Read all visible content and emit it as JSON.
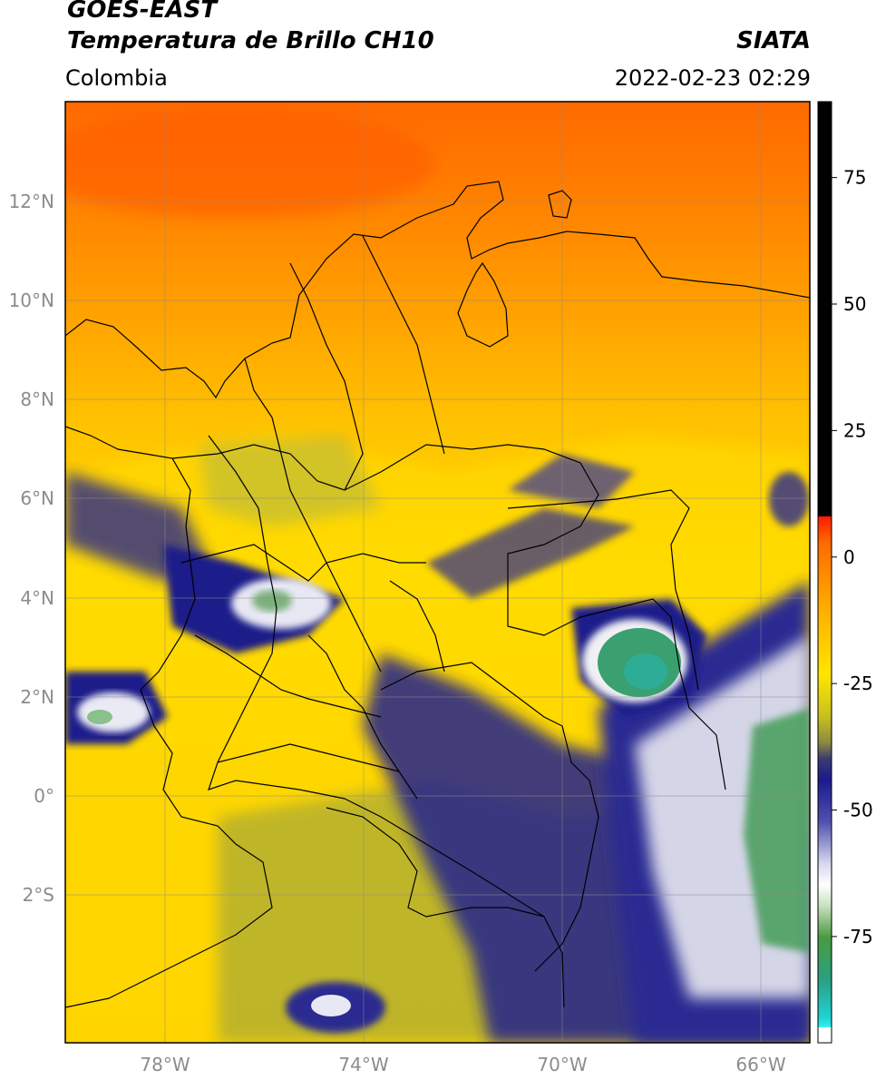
{
  "header": {
    "satellite": "GOES-EAST",
    "product": "Temperatura de Brillo CH10",
    "region": "Colombia",
    "org": "SIATA",
    "datetime": "2022-02-23 02:29"
  },
  "map": {
    "lon_range": [
      -80,
      -65
    ],
    "lat_range": [
      -5,
      14
    ],
    "lat_labels": [
      "12°N",
      "10°N",
      "8°N",
      "6°N",
      "4°N",
      "2°N",
      "0°",
      "2°S"
    ],
    "lat_values": [
      12,
      10,
      8,
      6,
      4,
      2,
      0,
      -2
    ],
    "lon_labels": [
      "78°W",
      "74°W",
      "70°W",
      "66°W"
    ],
    "lon_values": [
      -78,
      -74,
      -70,
      -66
    ],
    "grid": true,
    "colors": {
      "orange": "#ff8c00",
      "red_orange": "#ff5a00",
      "yellow": "#ffd400",
      "olive": "#a8a63a",
      "navy": "#1a1a8a",
      "white": "#f4f4f4",
      "green": "#3a9a58"
    }
  },
  "colorbar": {
    "tick_labels": [
      "75",
      "50",
      "25",
      "0",
      "-25",
      "-50",
      "-75"
    ],
    "tick_values": [
      75,
      50,
      25,
      0,
      -25,
      -50,
      -75
    ],
    "range": [
      -96,
      90
    ]
  }
}
